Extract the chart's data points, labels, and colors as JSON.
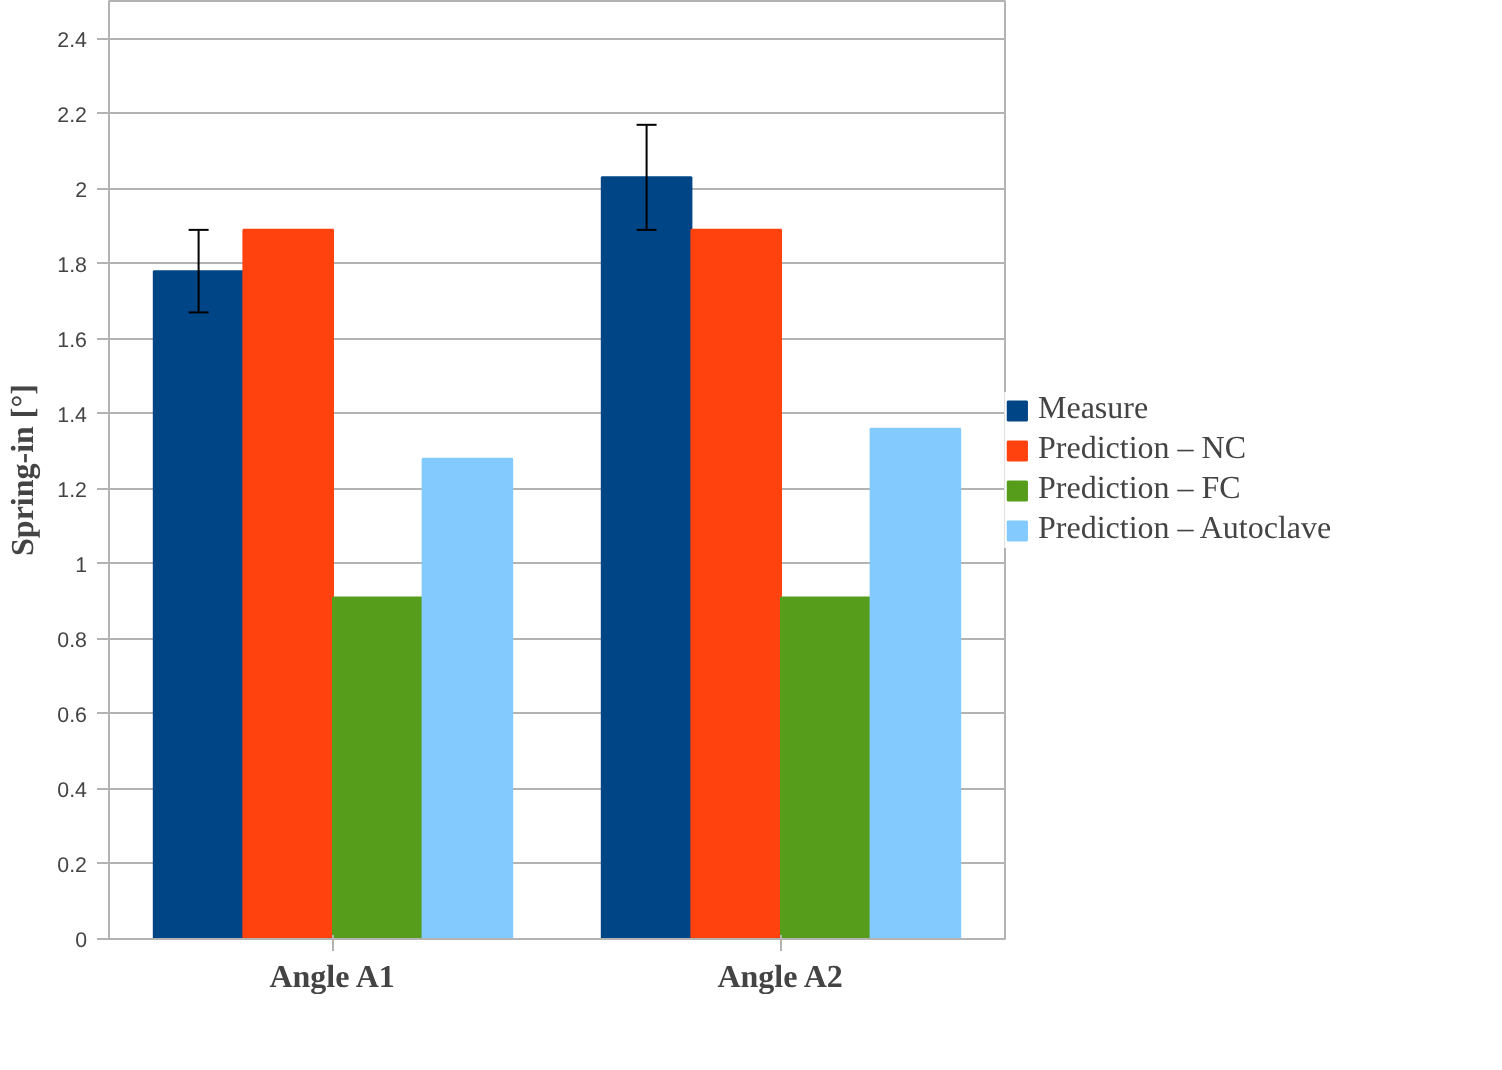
{
  "chart_data": {
    "type": "bar",
    "ylabel": "Spring-in [°]",
    "categories": [
      "Angle A1",
      "Angle A2"
    ],
    "series": [
      {
        "name": "Measure",
        "color": "#004586",
        "values": [
          1.78,
          2.03
        ],
        "errors": [
          0.11,
          0.14
        ]
      },
      {
        "name": "Prediction – NC",
        "color": "#ff420e",
        "values": [
          1.89,
          1.89
        ]
      },
      {
        "name": "Prediction – FC",
        "color": "#579d1c",
        "values": [
          0.91,
          0.91
        ]
      },
      {
        "name": "Prediction – Autoclave",
        "color": "#83caff",
        "values": [
          1.28,
          1.36
        ]
      }
    ],
    "ylim": [
      0,
      2.5
    ],
    "yticks": [
      0,
      0.2,
      0.4,
      0.6,
      0.8,
      1,
      1.2,
      1.4,
      1.6,
      1.8,
      2,
      2.2,
      2.4
    ],
    "grid": "y",
    "legend": "right"
  }
}
